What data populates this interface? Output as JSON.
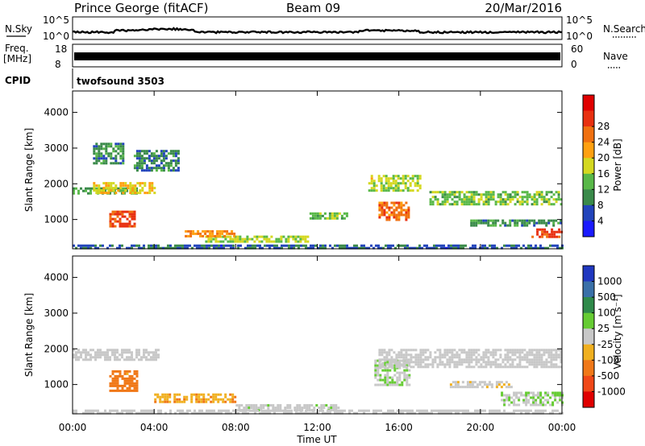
{
  "header": {
    "title": "Prince George (fitACF)",
    "beam": "Beam 09",
    "date": "20/Mar/2016"
  },
  "top_panels": {
    "nsky_label": "N.Sky",
    "nsky_ticks": [
      "10^5",
      "10^0"
    ],
    "nsearch_label": "N.Search",
    "freq_label_1": "Freq.",
    "freq_label_2": "[MHz]",
    "freq_ticks": [
      "18",
      "8"
    ],
    "nave_label": "Nave",
    "nave_ticks": [
      "60",
      "0"
    ],
    "cpid_label": "CPID",
    "cpid_value": "twofsound 3503"
  },
  "axes": {
    "ylabel": "Slant Range [km]",
    "xlabel": "Time UT",
    "y_ticks": [
      "1000",
      "2000",
      "3000",
      "4000"
    ],
    "x_ticks": [
      "00:00",
      "04:00",
      "08:00",
      "12:00",
      "16:00",
      "20:00",
      "00:00"
    ]
  },
  "power_colorbar": {
    "label": "Power [dB]",
    "ticks": [
      "4",
      "8",
      "12",
      "16",
      "20",
      "24",
      "28"
    ],
    "colors": [
      "#1a1aff",
      "#2244bb",
      "#3a8a4a",
      "#58b848",
      "#d4d820",
      "#ffa010",
      "#f07010",
      "#e83010",
      "#e00000"
    ]
  },
  "velocity_colorbar": {
    "label": "Velocity [m s⁻¹]",
    "ticks": [
      "1000",
      "500",
      "100",
      "25",
      "-25",
      "-100",
      "-500",
      "-1000"
    ],
    "colors": [
      "#2038c0",
      "#3a70a8",
      "#2f8a4a",
      "#66cc33",
      "#c8c8c8",
      "#f0b020",
      "#f07818",
      "#f04818",
      "#e00000"
    ]
  },
  "chart_data": [
    {
      "type": "heatmap",
      "title": "Power",
      "x_range": [
        "00:00",
        "00:00"
      ],
      "ylim": [
        180,
        4600
      ],
      "value_label": "Power [dB]",
      "clim": [
        0,
        30
      ],
      "regions": [
        {
          "t": [
            0.0,
            3.2
          ],
          "r": [
            1700,
            1900
          ],
          "value": 10
        },
        {
          "t": [
            1.0,
            4.0
          ],
          "r": [
            1750,
            2050
          ],
          "value": 16
        },
        {
          "t": [
            1.8,
            3.0
          ],
          "r": [
            800,
            1250
          ],
          "value": 24
        },
        {
          "t": [
            1.0,
            2.5
          ],
          "r": [
            2600,
            3150
          ],
          "value": 8
        },
        {
          "t": [
            3.0,
            5.2
          ],
          "r": [
            2400,
            2950
          ],
          "value": 8
        },
        {
          "t": [
            6.5,
            11.5
          ],
          "r": [
            400,
            550
          ],
          "value": 14
        },
        {
          "t": [
            5.5,
            8.0
          ],
          "r": [
            500,
            700
          ],
          "value": 20
        },
        {
          "t": [
            11.5,
            13.5
          ],
          "r": [
            1000,
            1200
          ],
          "value": 12
        },
        {
          "t": [
            14.5,
            17.0
          ],
          "r": [
            1800,
            2250
          ],
          "value": 14
        },
        {
          "t": [
            15.0,
            16.5
          ],
          "r": [
            1000,
            1500
          ],
          "value": 22
        },
        {
          "t": [
            17.5,
            24.0
          ],
          "r": [
            1400,
            1800
          ],
          "value": 12
        },
        {
          "t": [
            19.5,
            24.0
          ],
          "r": [
            800,
            1000
          ],
          "value": 8
        },
        {
          "t": [
            22.5,
            24.0
          ],
          "r": [
            500,
            750
          ],
          "value": 24
        },
        {
          "t": [
            0.0,
            24.0
          ],
          "r": [
            200,
            300
          ],
          "value": 6
        }
      ]
    },
    {
      "type": "heatmap",
      "title": "Velocity",
      "x_range": [
        "00:00",
        "00:00"
      ],
      "ylim": [
        180,
        4600
      ],
      "value_label": "Velocity [m s⁻¹]",
      "clim": [
        -1000,
        1000
      ],
      "regions": [
        {
          "t": [
            0.0,
            4.2
          ],
          "r": [
            1700,
            2000
          ],
          "value": 0
        },
        {
          "t": [
            1.8,
            3.2
          ],
          "r": [
            800,
            1400
          ],
          "value": -400
        },
        {
          "t": [
            4.0,
            8.0
          ],
          "r": [
            500,
            750
          ],
          "value": -300
        },
        {
          "t": [
            8.0,
            13.0
          ],
          "r": [
            300,
            450
          ],
          "value": 60
        },
        {
          "t": [
            14.8,
            16.5
          ],
          "r": [
            1000,
            1700
          ],
          "value": 80
        },
        {
          "t": [
            15.0,
            24.0
          ],
          "r": [
            1500,
            2000
          ],
          "value": 0
        },
        {
          "t": [
            18.5,
            21.5
          ],
          "r": [
            900,
            1100
          ],
          "value": -60
        },
        {
          "t": [
            21.0,
            24.0
          ],
          "r": [
            400,
            800
          ],
          "value": 80
        },
        {
          "t": [
            0.0,
            24.0
          ],
          "r": [
            200,
            300
          ],
          "value": 40
        }
      ]
    }
  ]
}
